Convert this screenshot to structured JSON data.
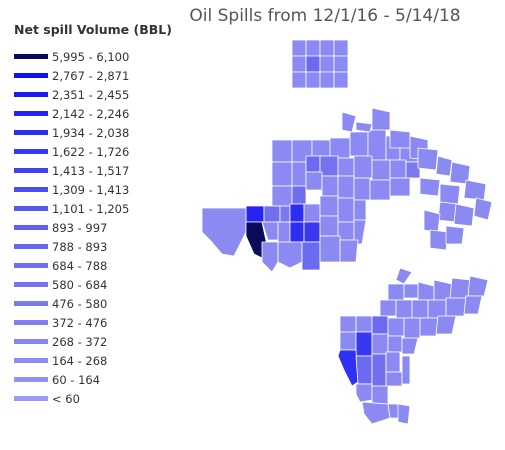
{
  "title": "Oil Spills from 12/1/16 - 5/14/18",
  "legend": {
    "title": "Net spill Volume (BBL)",
    "items": [
      {
        "label": "5,995 - 6,100",
        "color": "#0b0b5e"
      },
      {
        "label": "2,767 - 2,871",
        "color": "#1010f5"
      },
      {
        "label": "2,351 - 2,455",
        "color": "#1a1af5"
      },
      {
        "label": "2,142 - 2,246",
        "color": "#2424f5"
      },
      {
        "label": "1,934 - 2,038",
        "color": "#2e2ef3"
      },
      {
        "label": "1,622 - 1,726",
        "color": "#3838f2"
      },
      {
        "label": "1,413 - 1,517",
        "color": "#4242f1"
      },
      {
        "label": "1,309 - 1,413",
        "color": "#4c4cf1"
      },
      {
        "label": "1,101 - 1,205",
        "color": "#5656f0"
      },
      {
        "label": "893 - 997",
        "color": "#6060f0"
      },
      {
        "label": "788 - 893",
        "color": "#6767ef"
      },
      {
        "label": "684 - 788",
        "color": "#6e6eef"
      },
      {
        "label": "580 - 684",
        "color": "#7474ef"
      },
      {
        "label": "476 - 580",
        "color": "#7a7aef"
      },
      {
        "label": "372 - 476",
        "color": "#8080f0"
      },
      {
        "label": "268 - 372",
        "color": "#8686f1"
      },
      {
        "label": "164 - 268",
        "color": "#8c8cf2"
      },
      {
        "label": "60 - 164",
        "color": "#9292f3"
      },
      {
        "label": "< 60",
        "color": "#9a9af4"
      }
    ]
  }
}
